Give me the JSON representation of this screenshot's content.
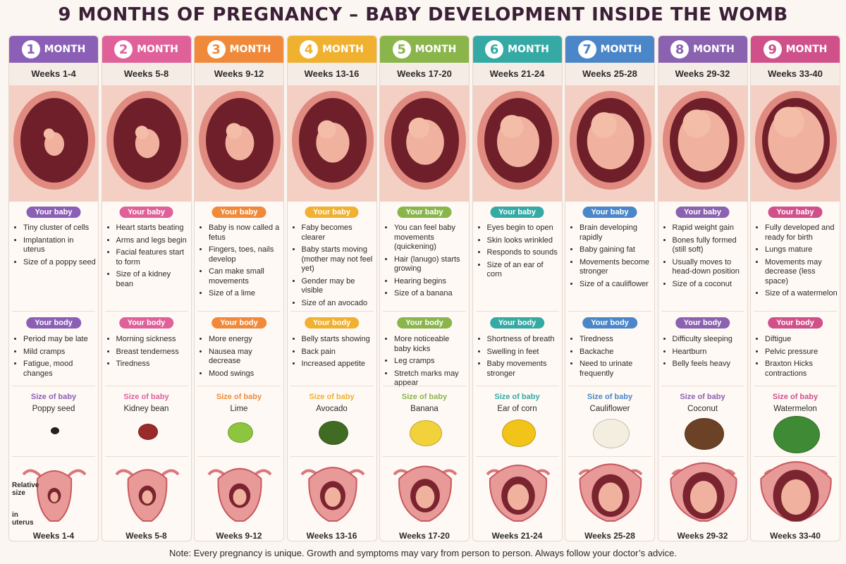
{
  "title": "9 MONTHS OF PREGNANCY – BABY DEVELOPMENT INSIDE THE WOMB",
  "months": [
    {
      "number": 1,
      "month_label": "MONTH",
      "weeks": "Weeks 1-4",
      "baby_label": "Your baby",
      "baby": [
        "Tiny cluster of cells",
        "Implantation in uterus",
        "Size of a poppy seed"
      ],
      "body_label": "Your body",
      "body": [
        "Period may be late",
        "Mild cramps",
        "Fatigue, mood changes"
      ],
      "size_label": "Size of baby",
      "size": "Poppy seed",
      "relative_label": [
        "Relative size",
        "in uterus"
      ],
      "bottom_weeks": "Weeks 1-4"
    },
    {
      "number": 2,
      "month_label": "MONTH",
      "weeks": "Weeks 5-8",
      "baby_label": "Your baby",
      "baby": [
        "Heart starts beating",
        "Arms and legs begin",
        "Facial features start to form",
        "Size of a kidney bean"
      ],
      "body_label": "Your body",
      "body": [
        "Morning sickness",
        "Breast tenderness",
        "Tiredness"
      ],
      "size_label": "Size of baby",
      "size": "Kidney bean",
      "bottom_weeks": "Weeks 5-8"
    },
    {
      "number": 3,
      "month_label": "MONTH",
      "weeks": "Weeks 9-12",
      "baby_label": "Your baby",
      "baby": [
        "Baby is now called a fetus",
        "Fingers, toes, nails develop",
        "Can make small movements",
        "Size of a lime"
      ],
      "body_label": "Your body",
      "body": [
        "More energy",
        "Nausea may decrease",
        "Mood swings"
      ],
      "size_label": "Size of baby",
      "size": "Lime",
      "bottom_weeks": "Weeks 9-12"
    },
    {
      "number": 4,
      "month_label": "MONTH",
      "weeks": "Weeks 13-16",
      "baby_label": "Your baby",
      "baby": [
        "Faby becomes clearer",
        "Baby starts moving (mother may not feel yet)",
        "Gender may be visible",
        "Size of an avocado"
      ],
      "body_label": "Your body",
      "body": [
        "Belly starts showing",
        "Back pain",
        "Increased appetite"
      ],
      "size_label": "Size of baby",
      "size": "Avocado",
      "bottom_weeks": "Weeks 13-16"
    },
    {
      "number": 5,
      "month_label": "MONTH",
      "weeks": "Weeks 17-20",
      "baby_label": "Your baby",
      "baby": [
        "You can feel baby movements (quickening)",
        "Hair (lanugo) starts growing",
        "Hearing begins",
        "Size of a banana"
      ],
      "body_label": "Your body",
      "body": [
        "More noticeable baby kicks",
        "Leg cramps",
        "Stretch marks may appear"
      ],
      "size_label": "Size of baby",
      "size": "Banana",
      "bottom_weeks": "Weeks 17-20"
    },
    {
      "number": 6,
      "month_label": "MONTH",
      "weeks": "Weeks 21-24",
      "baby_label": "Your baby",
      "baby": [
        "Eyes begin to open",
        "Skin looks wrinkled",
        "Responds to sounds",
        "Size of an ear of corn"
      ],
      "body_label": "Your body",
      "body": [
        "Shortness of breath",
        "Swelling in feet",
        "Baby movements stronger"
      ],
      "size_label": "Size of baby",
      "size": "Ear of corn",
      "bottom_weeks": "Weeks 21-24"
    },
    {
      "number": 7,
      "month_label": "MONTH",
      "weeks": "Weeks 25-28",
      "baby_label": "Your baby",
      "baby": [
        "Brain developing rapidly",
        "Baby gaining fat",
        "Movements become stronger",
        "Size of a cauliflower"
      ],
      "body_label": "Your body",
      "body": [
        "Tiredness",
        "Backache",
        "Need to urinate frequently"
      ],
      "size_label": "Size of baby",
      "size": "Cauliflower",
      "bottom_weeks": "Weeks 25-28"
    },
    {
      "number": 8,
      "month_label": "MONTH",
      "weeks": "Weeks 29-32",
      "baby_label": "Your baby",
      "baby": [
        "Rapid weight gain",
        "Bones fully formed (still soft)",
        "Usually moves to head-down position",
        "Size of a coconut"
      ],
      "body_label": "Your body",
      "body": [
        "Difficulty sleeping",
        "Heartburn",
        "Belly feels heavy"
      ],
      "size_label": "Size of baby",
      "size": "Coconut",
      "bottom_weeks": "Weeks 29-32"
    },
    {
      "number": 9,
      "month_label": "MONTH",
      "weeks": "Weeks 33-40",
      "baby_label": "Your baby",
      "baby": [
        "Fully developed and ready for birth",
        "Lungs mature",
        "Movements may decrease (less space)",
        "Size of a watermelon"
      ],
      "body_label": "Your body",
      "body": [
        "Diftigue",
        "Pelvic pressure",
        "Braxton Hicks contractions"
      ],
      "size_label": "Size of baby",
      "size": "Watermelon",
      "bottom_weeks": "Weeks 33-40"
    }
  ],
  "note": "Note: Every pregnancy is unique. Growth and symptoms may vary from person to person. Always follow your doctor’s advice."
}
